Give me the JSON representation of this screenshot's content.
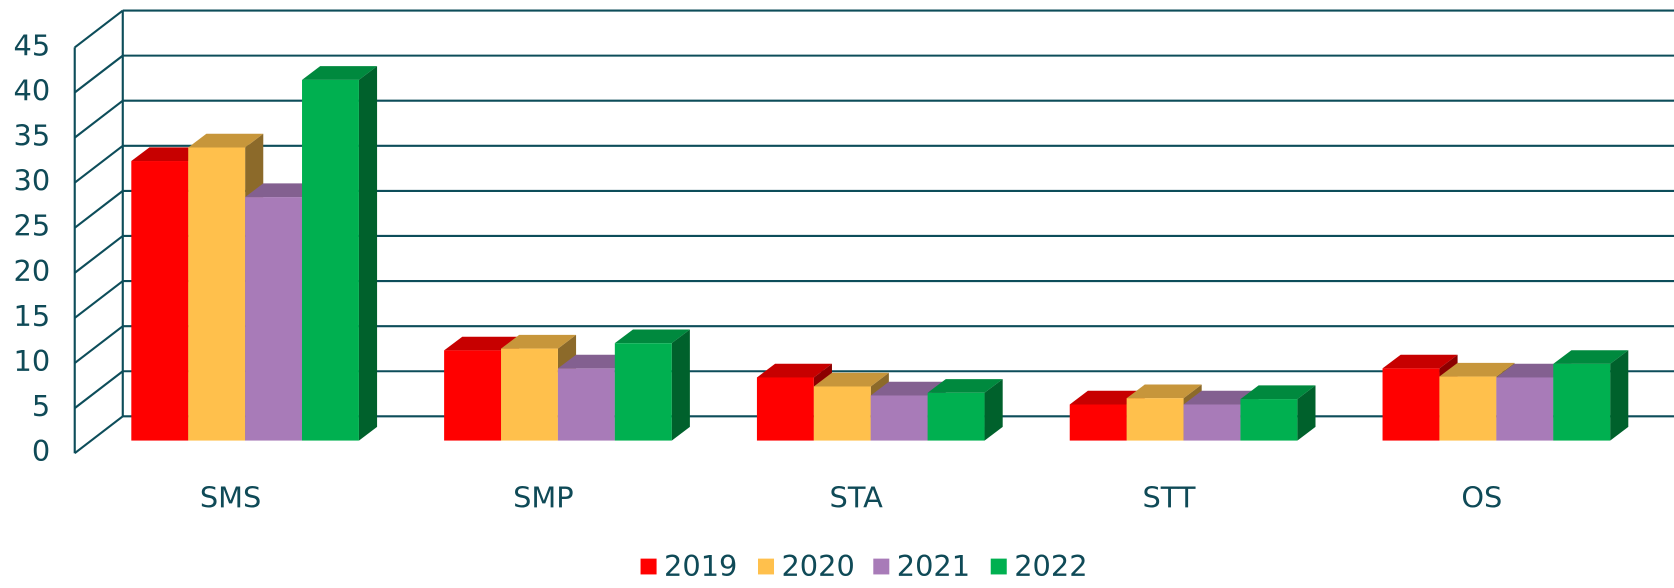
{
  "chart_data": {
    "type": "bar3d",
    "categories": [
      "SMS",
      "SMP",
      "STA",
      "STT",
      "OS"
    ],
    "series": [
      {
        "name": "2019",
        "color": "#ff0000",
        "values": [
          31,
          10,
          7,
          4,
          8
        ]
      },
      {
        "name": "2020",
        "color": "#ffc04c",
        "values": [
          32.5,
          10.2,
          6,
          4.7,
          7.1
        ]
      },
      {
        "name": "2021",
        "color": "#a87bb8",
        "values": [
          27,
          8,
          5,
          4,
          7
        ]
      },
      {
        "name": "2022",
        "color": "#00b050",
        "values": [
          40,
          10.8,
          5.3,
          4.6,
          8.5
        ]
      }
    ],
    "ylim": [
      0,
      45
    ],
    "yticks": [
      0,
      5,
      10,
      15,
      20,
      25,
      30,
      35,
      40,
      45
    ],
    "grid": true,
    "legend": "bottom"
  }
}
